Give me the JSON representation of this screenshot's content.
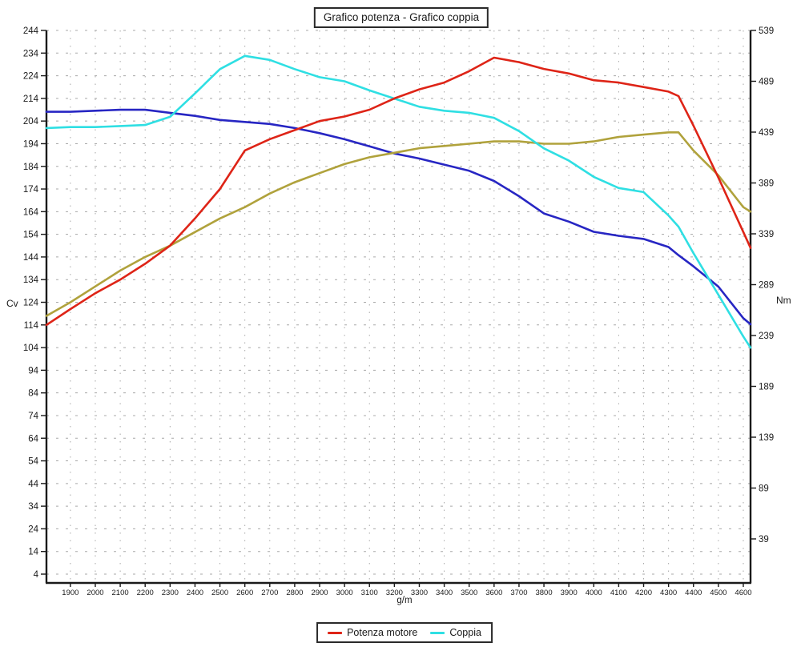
{
  "title": "Grafico potenza - Grafico coppia",
  "legend": {
    "items": [
      {
        "label": "Potenza motore",
        "color": "#de2417"
      },
      {
        "label": "Coppia",
        "color": "#2fdfe3"
      }
    ]
  },
  "chart_data": {
    "type": "line",
    "title": "Grafico potenza - Grafico coppia",
    "xlabel": "g/m",
    "ylabel_left": "Cv",
    "ylabel_right": "Nm",
    "grid": "dotted, at every 100 g/m vertical and every 10 Cv horizontal",
    "legend_position": "bottom-center",
    "x_range": [
      1804,
      4629
    ],
    "x_tick_labels": [
      1900,
      2000,
      2100,
      2200,
      2300,
      2400,
      2500,
      2600,
      2700,
      2800,
      2900,
      3000,
      3100,
      3200,
      3300,
      3400,
      3500,
      3600,
      3700,
      3800,
      3900,
      4000,
      4100,
      4200,
      4300,
      4400,
      4500,
      4600
    ],
    "y_left_tick_labels": [
      244,
      234,
      224,
      214,
      204,
      194,
      184,
      174,
      164,
      154,
      144,
      134,
      124,
      114,
      104,
      94,
      84,
      74,
      64,
      54,
      44,
      34,
      24,
      14,
      4
    ],
    "y_right_tick_labels": [
      539,
      489,
      439,
      389,
      339,
      289,
      239,
      189,
      139,
      89,
      39
    ],
    "x": [
      1804,
      1900,
      2000,
      2100,
      2200,
      2300,
      2400,
      2500,
      2600,
      2700,
      2800,
      2900,
      3000,
      3100,
      3200,
      3300,
      3400,
      3500,
      3600,
      3700,
      3800,
      3900,
      4000,
      4100,
      4200,
      4300,
      4340,
      4400,
      4500,
      4600,
      4629
    ],
    "series": [
      {
        "name": "unlabeled-reference-torque-blue",
        "axis": "right",
        "unit": "Nm",
        "color": "#2726c3",
        "in_legend": false,
        "values": [
          459,
          459,
          460,
          461,
          461,
          458,
          455,
          451,
          449,
          447,
          443,
          438,
          432,
          425,
          418,
          413,
          407,
          401,
          391,
          376,
          359,
          351,
          341,
          337,
          334,
          326,
          318,
          307,
          287,
          256,
          250
        ]
      },
      {
        "name": "unlabeled-reference-power-olive",
        "axis": "left",
        "unit": "Cv",
        "color": "#b0a23c",
        "in_legend": false,
        "values": [
          118,
          124,
          131,
          138,
          144,
          149,
          155,
          161,
          166,
          172,
          177,
          181,
          185,
          188,
          190,
          192,
          193,
          194,
          195,
          195,
          194,
          194,
          195,
          197,
          198,
          199,
          199,
          191,
          180,
          166,
          164
        ]
      },
      {
        "name": "Coppia",
        "axis": "right",
        "unit": "Nm",
        "color": "#2fdfe3",
        "in_legend": true,
        "values": [
          443,
          444,
          444,
          445,
          446,
          454,
          477,
          501,
          514,
          510,
          501,
          493,
          489,
          480,
          472,
          464,
          460,
          458,
          453,
          440,
          423,
          411,
          395,
          384,
          380,
          357,
          346,
          320,
          279,
          238,
          227
        ]
      },
      {
        "name": "Potenza motore",
        "axis": "left",
        "unit": "Cv",
        "color": "#de2417",
        "in_legend": true,
        "values": [
          114,
          121,
          128,
          134,
          141,
          149,
          161,
          174,
          191,
          196,
          200,
          204,
          206,
          209,
          214,
          218,
          221,
          226,
          232,
          230,
          227,
          225,
          222,
          221,
          219,
          217,
          215,
          202,
          179,
          155,
          148
        ]
      }
    ]
  }
}
